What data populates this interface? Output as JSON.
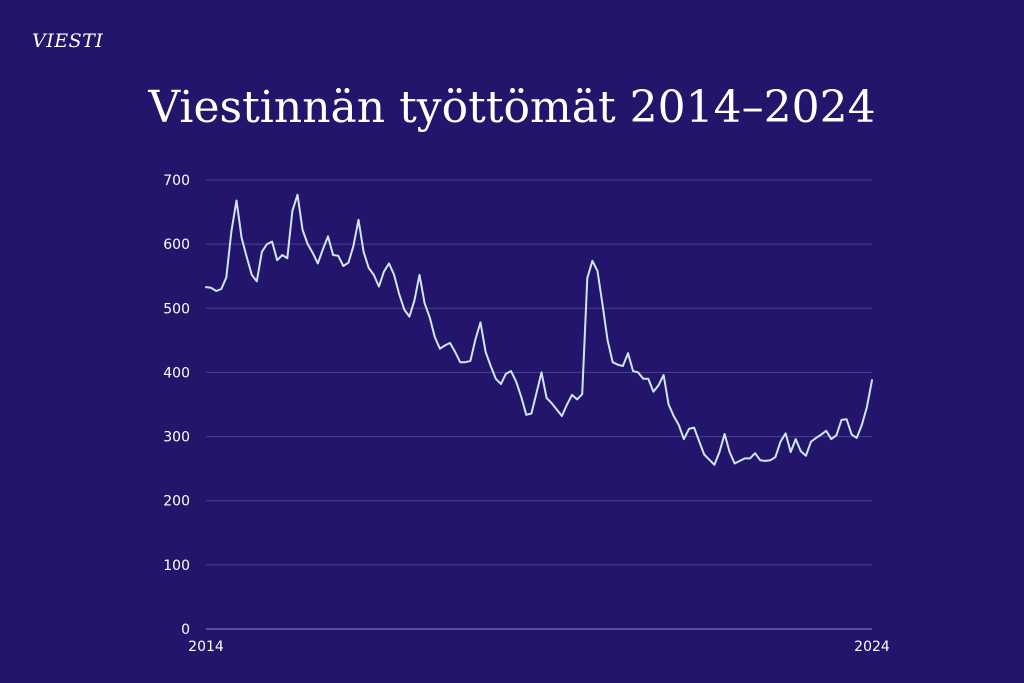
{
  "brand": {
    "logo_text": "VIESTI"
  },
  "colors": {
    "background": "#23156b",
    "line": "#cfe6f5",
    "grid": "#4b3f93",
    "text": "#ffffff"
  },
  "chart_data": {
    "type": "line",
    "title": "Viestinnän työttömät 2014–2024",
    "xlabel": "",
    "ylabel": "",
    "xlim": [
      2014,
      2024
    ],
    "ylim": [
      0,
      700
    ],
    "grid": true,
    "y_ticks": [
      0,
      100,
      200,
      300,
      400,
      500,
      600,
      700
    ],
    "x_tick_labels": [
      "2014",
      "2024"
    ],
    "series": [
      {
        "values": [
          533,
          532,
          527,
          530,
          548,
          620,
          668,
          610,
          580,
          552,
          542,
          588,
          600,
          604,
          575,
          583,
          578,
          652,
          677,
          622,
          600,
          586,
          570,
          592,
          612,
          583,
          582,
          566,
          571,
          597,
          638,
          588,
          563,
          552,
          534,
          557,
          570,
          552,
          522,
          498,
          487,
          512,
          552,
          508,
          486,
          455,
          437,
          442,
          446,
          432,
          416,
          416,
          418,
          452,
          478,
          432,
          410,
          390,
          382,
          398,
          402,
          386,
          362,
          334,
          336,
          368,
          400,
          360,
          352,
          342,
          332,
          350,
          365,
          358,
          366,
          547,
          574,
          558,
          506,
          450,
          416,
          412,
          410,
          430,
          402,
          400,
          390,
          390,
          370,
          380,
          396,
          350,
          332,
          318,
          296,
          312,
          314,
          293,
          272,
          264,
          256,
          276,
          304,
          276,
          258,
          262,
          266,
          266,
          274,
          263,
          262,
          263,
          268,
          292,
          305,
          276,
          296,
          277,
          270,
          292,
          298,
          303,
          309,
          296,
          302,
          326,
          327,
          303,
          298,
          318,
          346,
          388
        ]
      }
    ]
  }
}
